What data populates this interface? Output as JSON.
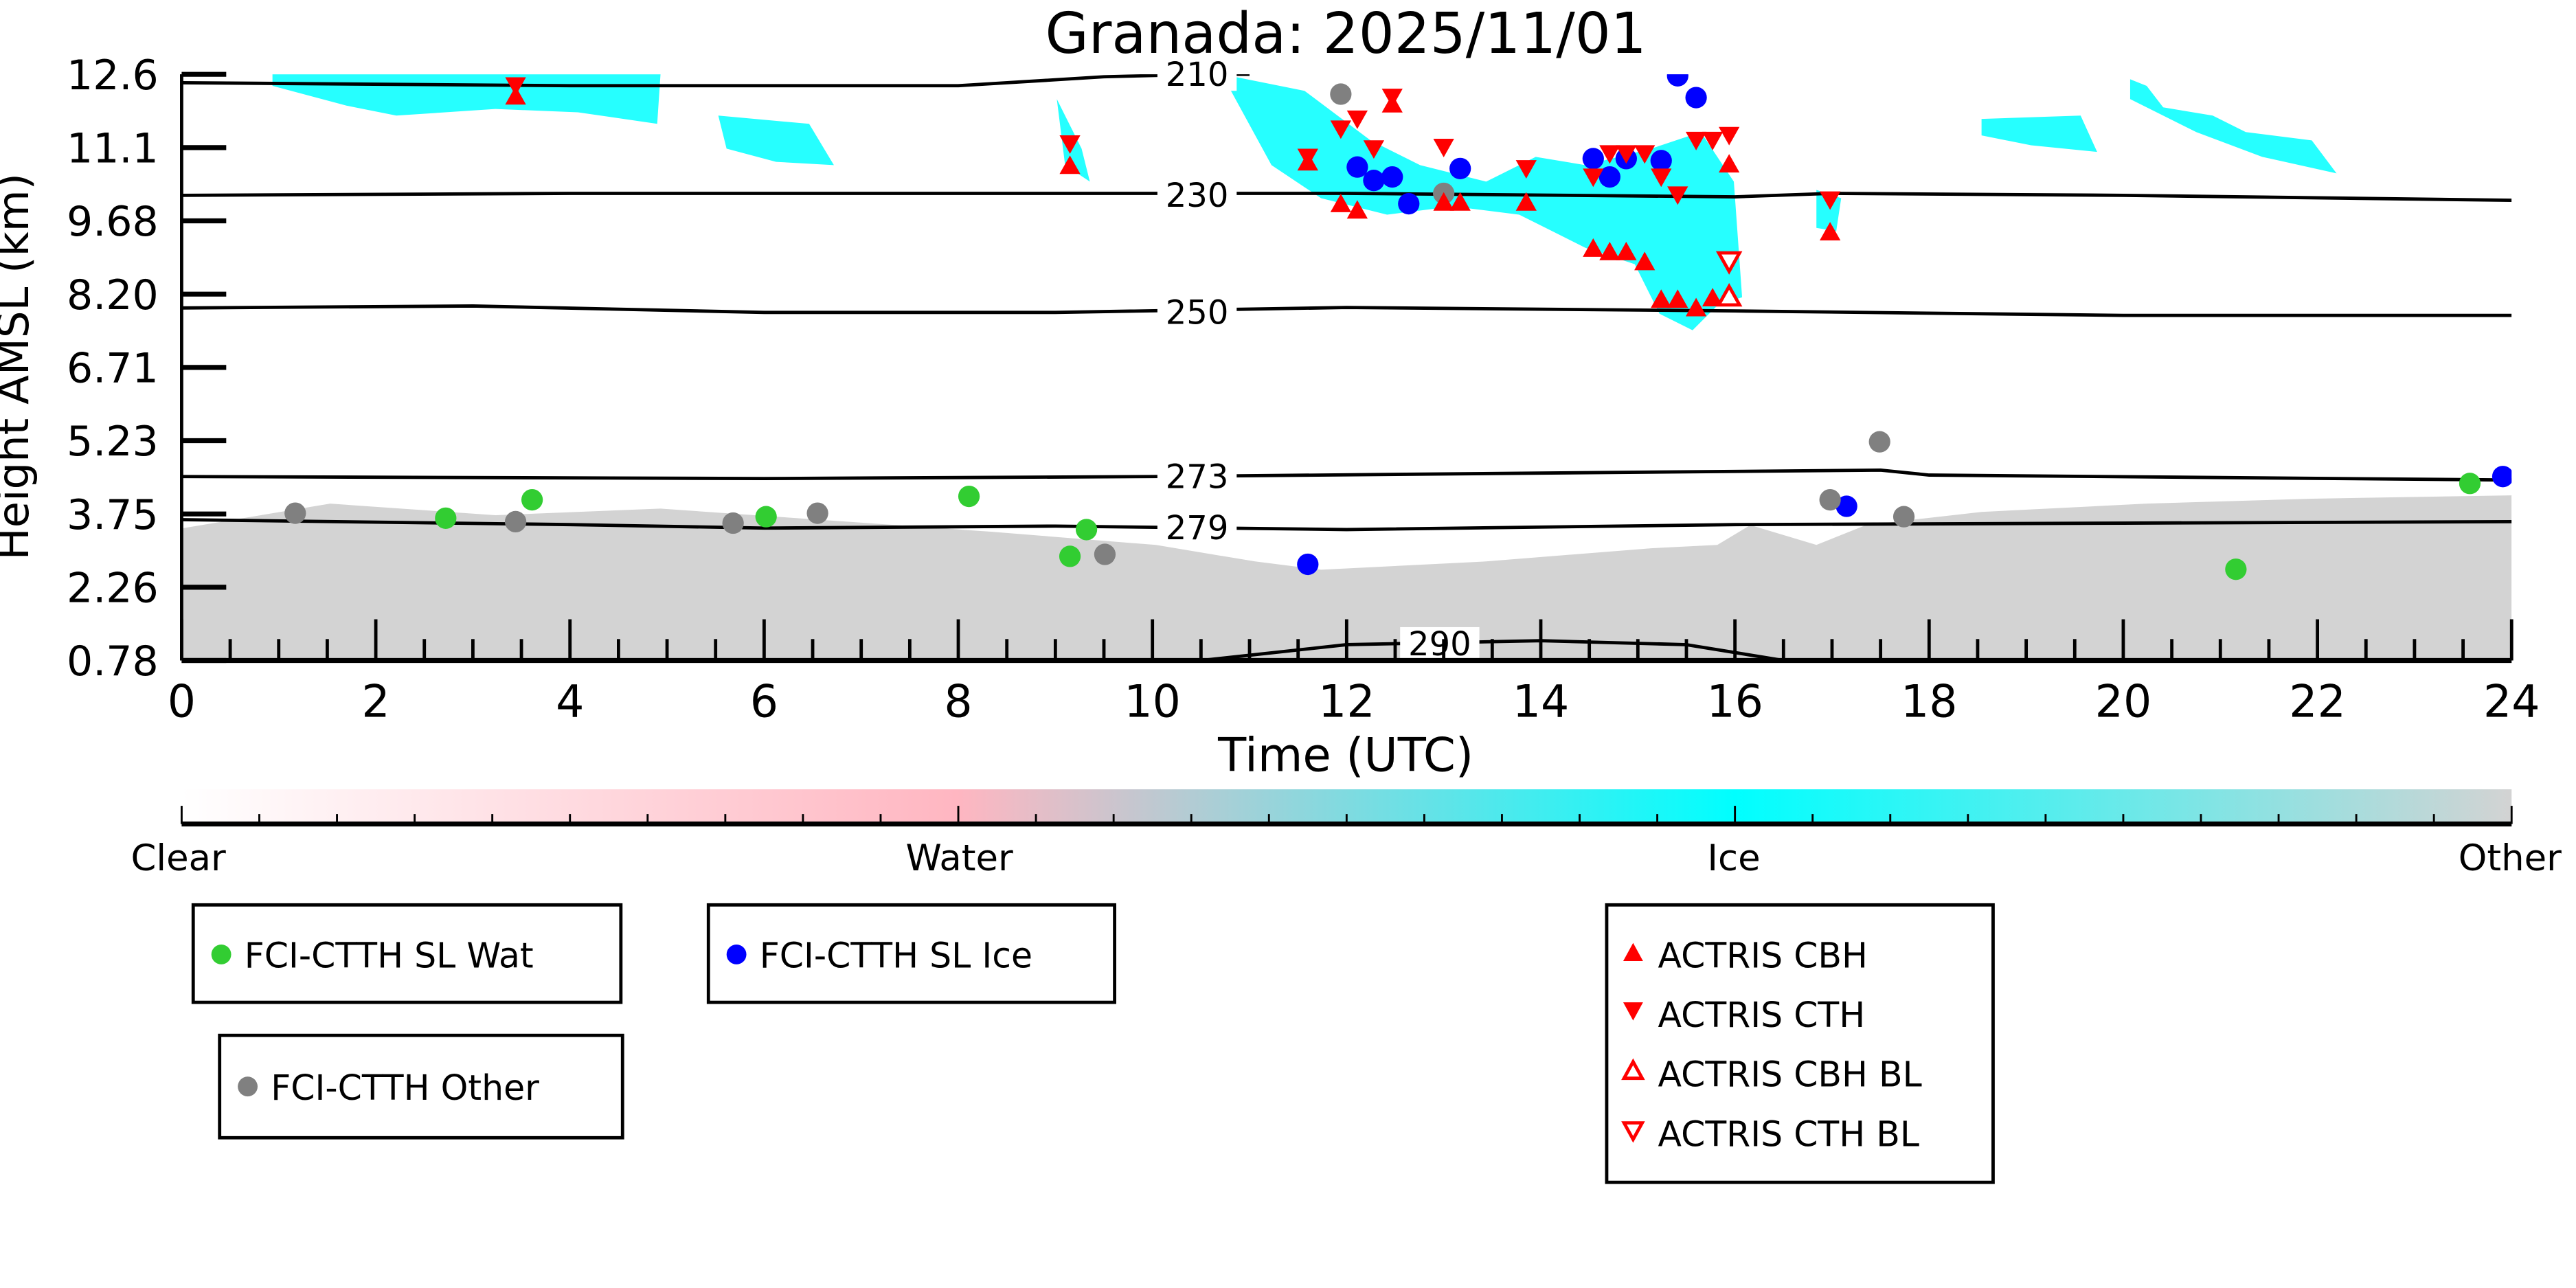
{
  "chart_data": {
    "type": "scatter",
    "title": "Granada: 2025/11/01",
    "xlabel": "Time (UTC)",
    "ylabel": "Height AMSL (km)",
    "xlim": [
      0,
      24
    ],
    "ylim": [
      0.78,
      12.6
    ],
    "xticks": [
      "0",
      "2",
      "4",
      "6",
      "8",
      "10",
      "12",
      "14",
      "16",
      "18",
      "20",
      "22",
      "24"
    ],
    "yticks": [
      "0.78",
      "2.26",
      "3.75",
      "5.23",
      "6.71",
      "8.20",
      "9.68",
      "11.1",
      "12.6"
    ],
    "colorbar": {
      "labels": [
        "Clear",
        "Water",
        "Ice",
        "Other"
      ],
      "colors": [
        "#ffffff",
        "#ffb6c1",
        "#00ffff",
        "#d3d3d3"
      ]
    },
    "isotherms": [
      {
        "label": "210",
        "label_at": [
          10.0,
          12.6
        ],
        "points": [
          [
            0,
            12.43
          ],
          [
            4,
            12.37
          ],
          [
            8,
            12.37
          ],
          [
            9.5,
            12.55
          ],
          [
            10.5,
            12.6
          ],
          [
            11.0,
            12.6
          ]
        ]
      },
      {
        "label": "230",
        "label_at": [
          10.0,
          10.16
        ],
        "points": [
          [
            0,
            10.16
          ],
          [
            4,
            10.2
          ],
          [
            8,
            10.2
          ],
          [
            12,
            10.2
          ],
          [
            16,
            10.13
          ],
          [
            17,
            10.2
          ],
          [
            20,
            10.16
          ],
          [
            24,
            10.06
          ]
        ]
      },
      {
        "label": "250",
        "label_at": [
          10.0,
          7.8
        ],
        "points": [
          [
            0,
            7.89
          ],
          [
            3,
            7.93
          ],
          [
            6,
            7.8
          ],
          [
            9,
            7.8
          ],
          [
            12,
            7.9
          ],
          [
            16,
            7.83
          ],
          [
            20,
            7.74
          ],
          [
            24,
            7.74
          ]
        ]
      },
      {
        "label": "273",
        "label_at": [
          10.0,
          4.49
        ],
        "points": [
          [
            0,
            4.49
          ],
          [
            6,
            4.45
          ],
          [
            10,
            4.49
          ],
          [
            14,
            4.56
          ],
          [
            17.5,
            4.62
          ],
          [
            18,
            4.52
          ],
          [
            24,
            4.42
          ]
        ]
      },
      {
        "label": "279",
        "label_at": [
          10.0,
          3.46
        ],
        "points": [
          [
            0,
            3.62
          ],
          [
            4,
            3.52
          ],
          [
            6,
            3.45
          ],
          [
            9,
            3.49
          ],
          [
            12,
            3.42
          ],
          [
            16,
            3.52
          ],
          [
            20,
            3.55
          ],
          [
            24,
            3.58
          ]
        ]
      },
      {
        "label": "290",
        "label_at": [
          12.5,
          1.12
        ],
        "points": [
          [
            10.5,
            0.78
          ],
          [
            12,
            1.1
          ],
          [
            14,
            1.18
          ],
          [
            15.5,
            1.1
          ],
          [
            16.5,
            0.78
          ]
        ]
      }
    ],
    "series": [
      {
        "name": "FCI-CTTH SL Wat",
        "marker": "circle",
        "color": "#32cd32",
        "points": [
          [
            2.72,
            3.65
          ],
          [
            3.61,
            4.02
          ],
          [
            6.02,
            3.68
          ],
          [
            8.11,
            4.09
          ],
          [
            9.15,
            2.88
          ],
          [
            9.32,
            3.42
          ],
          [
            21.16,
            2.62
          ],
          [
            23.57,
            4.35
          ]
        ]
      },
      {
        "name": "FCI-CTTH SL Ice",
        "marker": "circle",
        "color": "#0000ff",
        "points": [
          [
            11.6,
            2.72
          ],
          [
            12.11,
            10.73
          ],
          [
            12.28,
            10.46
          ],
          [
            12.47,
            10.53
          ],
          [
            12.64,
            9.99
          ],
          [
            13.17,
            10.7
          ],
          [
            14.54,
            10.9
          ],
          [
            14.71,
            10.53
          ],
          [
            14.88,
            10.9
          ],
          [
            15.24,
            10.86
          ],
          [
            15.41,
            12.57
          ],
          [
            15.6,
            12.13
          ],
          [
            17.15,
            3.89
          ],
          [
            23.91,
            4.49
          ]
        ]
      },
      {
        "name": "FCI-CTTH Other",
        "marker": "circle",
        "color": "#808080",
        "points": [
          [
            1.17,
            3.75
          ],
          [
            3.44,
            3.58
          ],
          [
            5.68,
            3.55
          ],
          [
            6.55,
            3.75
          ],
          [
            9.51,
            2.92
          ],
          [
            11.94,
            12.2
          ],
          [
            13.0,
            10.2
          ],
          [
            16.98,
            4.02
          ],
          [
            17.49,
            5.19
          ],
          [
            17.74,
            3.68
          ]
        ]
      },
      {
        "name": "ACTRIS CBH",
        "marker": "triangle-up",
        "color": "#ff0000",
        "points": [
          [
            3.44,
            12.13
          ],
          [
            9.15,
            10.73
          ],
          [
            11.6,
            10.8
          ],
          [
            11.94,
            9.96
          ],
          [
            12.11,
            9.83
          ],
          [
            12.47,
            11.97
          ],
          [
            13.0,
            9.99
          ],
          [
            13.17,
            9.99
          ],
          [
            13.85,
            9.99
          ],
          [
            14.54,
            9.06
          ],
          [
            14.71,
            8.99
          ],
          [
            14.88,
            8.99
          ],
          [
            15.07,
            8.79
          ],
          [
            15.24,
            8.03
          ],
          [
            15.41,
            8.03
          ],
          [
            15.6,
            7.86
          ],
          [
            15.77,
            8.06
          ],
          [
            15.94,
            8.13
          ],
          [
            15.94,
            10.76
          ],
          [
            16.98,
            9.39
          ]
        ]
      },
      {
        "name": "ACTRIS CTH",
        "marker": "triangle-down",
        "color": "#ff0000",
        "points": [
          [
            3.44,
            12.4
          ],
          [
            9.15,
            11.23
          ],
          [
            11.6,
            10.96
          ],
          [
            11.94,
            11.53
          ],
          [
            12.11,
            11.73
          ],
          [
            12.28,
            11.13
          ],
          [
            12.47,
            12.17
          ],
          [
            13.0,
            11.16
          ],
          [
            13.85,
            10.73
          ],
          [
            14.54,
            10.56
          ],
          [
            14.71,
            11.03
          ],
          [
            14.88,
            11.03
          ],
          [
            15.07,
            11.03
          ],
          [
            15.24,
            10.56
          ],
          [
            15.41,
            10.2
          ],
          [
            15.6,
            11.3
          ],
          [
            15.77,
            11.3
          ],
          [
            15.94,
            11.4
          ],
          [
            16.98,
            10.1
          ]
        ]
      },
      {
        "name": "ACTRIS CBH BL",
        "marker": "triangle-up-open",
        "color": "#ff0000",
        "points": [
          [
            15.94,
            8.09
          ]
        ]
      },
      {
        "name": "ACTRIS CTH BL",
        "marker": "triangle-down-open",
        "color": "#ff0000",
        "points": [
          [
            15.94,
            8.86
          ]
        ]
      }
    ]
  }
}
